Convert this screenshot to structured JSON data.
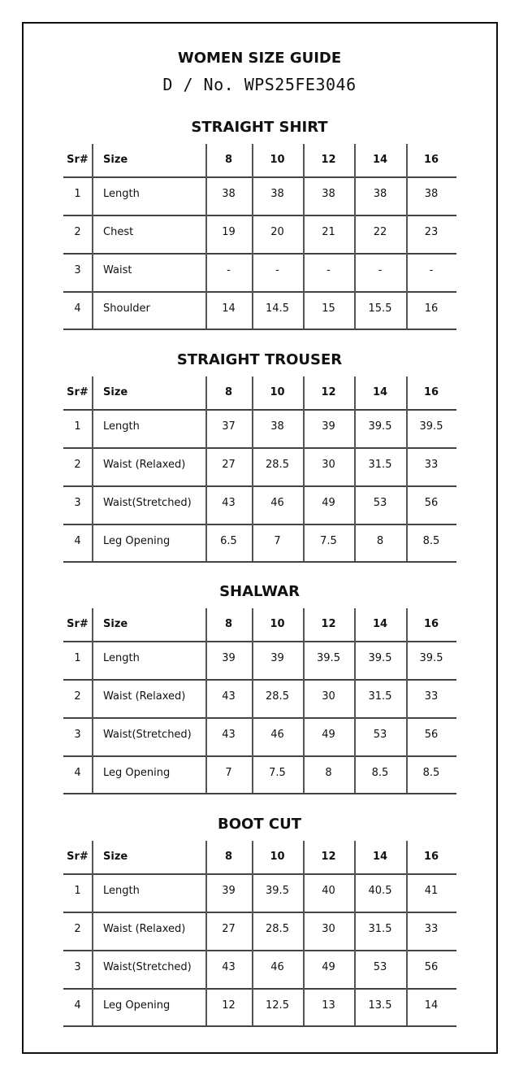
{
  "title": "WOMEN SIZE GUIDE",
  "design_no": "D / No. WPS25FE3046",
  "columns": [
    "Sr#",
    "Size",
    "8",
    "10",
    "12",
    "14",
    "16"
  ],
  "sections": [
    {
      "title": "STRAIGHT SHIRT",
      "rows": [
        [
          "1",
          "Length",
          "38",
          "38",
          "38",
          "38",
          "38"
        ],
        [
          "2",
          "Chest",
          "19",
          "20",
          "21",
          "22",
          "23"
        ],
        [
          "3",
          "Waist",
          "-",
          "-",
          "-",
          "-",
          "-"
        ],
        [
          "4",
          "Shoulder",
          "14",
          "14.5",
          "15",
          "15.5",
          "16"
        ]
      ]
    },
    {
      "title": "STRAIGHT TROUSER",
      "rows": [
        [
          "1",
          "Length",
          "37",
          "38",
          "39",
          "39.5",
          "39.5"
        ],
        [
          "2",
          "Waist (Relaxed)",
          "27",
          "28.5",
          "30",
          "31.5",
          "33"
        ],
        [
          "3",
          "Waist(Stretched)",
          "43",
          "46",
          "49",
          "53",
          "56"
        ],
        [
          "4",
          "Leg Opening",
          "6.5",
          "7",
          "7.5",
          "8",
          "8.5"
        ]
      ]
    },
    {
      "title": "SHALWAR",
      "rows": [
        [
          "1",
          "Length",
          "39",
          "39",
          "39.5",
          "39.5",
          "39.5"
        ],
        [
          "2",
          "Waist (Relaxed)",
          "43",
          "28.5",
          "30",
          "31.5",
          "33"
        ],
        [
          "3",
          "Waist(Stretched)",
          "43",
          "46",
          "49",
          "53",
          "56"
        ],
        [
          "4",
          "Leg Opening",
          "7",
          "7.5",
          "8",
          "8.5",
          "8.5"
        ]
      ]
    },
    {
      "title": "BOOT CUT",
      "rows": [
        [
          "1",
          "Length",
          "39",
          "39.5",
          "40",
          "40.5",
          "41"
        ],
        [
          "2",
          "Waist (Relaxed)",
          "27",
          "28.5",
          "30",
          "31.5",
          "33"
        ],
        [
          "3",
          "Waist(Stretched)",
          "43",
          "46",
          "49",
          "53",
          "56"
        ],
        [
          "4",
          "Leg Opening",
          "12",
          "12.5",
          "13",
          "13.5",
          "14"
        ]
      ]
    }
  ]
}
